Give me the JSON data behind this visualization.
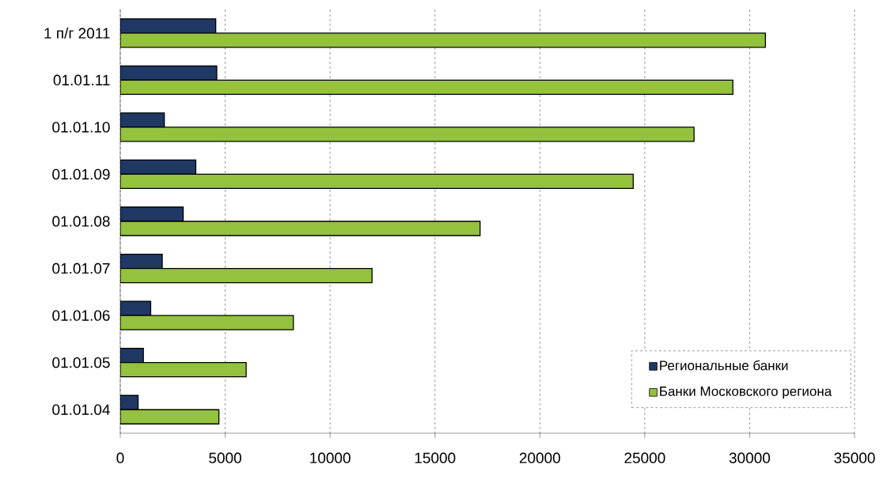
{
  "chart_data": {
    "type": "bar",
    "orientation": "horizontal",
    "categories": [
      "1 п/г 2011",
      "01.01.11",
      "01.01.10",
      "01.01.09",
      "01.01.08",
      "01.01.07",
      "01.01.06",
      "01.01.05",
      "01.01.04"
    ],
    "series": [
      {
        "name": "Региональные банки",
        "color": "#1f3864",
        "values": [
          4550,
          4600,
          2100,
          3600,
          3000,
          2000,
          1450,
          1100,
          850
        ]
      },
      {
        "name": "Банки Московского региона",
        "color": "#94c23e",
        "values": [
          30750,
          29200,
          27350,
          24450,
          17150,
          12000,
          8250,
          6000,
          4700
        ]
      }
    ],
    "xlim": [
      0,
      35000
    ],
    "xticks": [
      0,
      5000,
      10000,
      15000,
      20000,
      25000,
      30000,
      35000
    ],
    "grid": "x",
    "legend": "bottom right"
  }
}
